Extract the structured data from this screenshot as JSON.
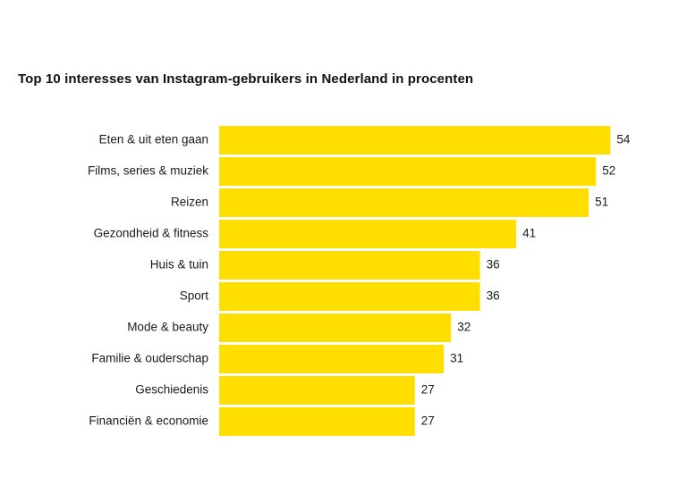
{
  "chart_data": {
    "type": "bar",
    "orientation": "horizontal",
    "title": "Top 10 interesses van Instagram-gebruikers in Nederland in procenten",
    "categories": [
      "Eten & uit eten gaan",
      "Films, series & muziek",
      "Reizen",
      "Gezondheid & fitness",
      "Huis & tuin",
      "Sport",
      "Mode & beauty",
      "Familie & ouderschap",
      "Geschiedenis",
      "Financiën & economie"
    ],
    "values": [
      54,
      52,
      51,
      41,
      36,
      36,
      32,
      31,
      27,
      27
    ],
    "xlabel": "",
    "ylabel": "",
    "grid": false,
    "legend": "none",
    "colors": {
      "bar": "#FFDE00",
      "text": "#1a1a1a",
      "background": "#ffffff"
    }
  }
}
